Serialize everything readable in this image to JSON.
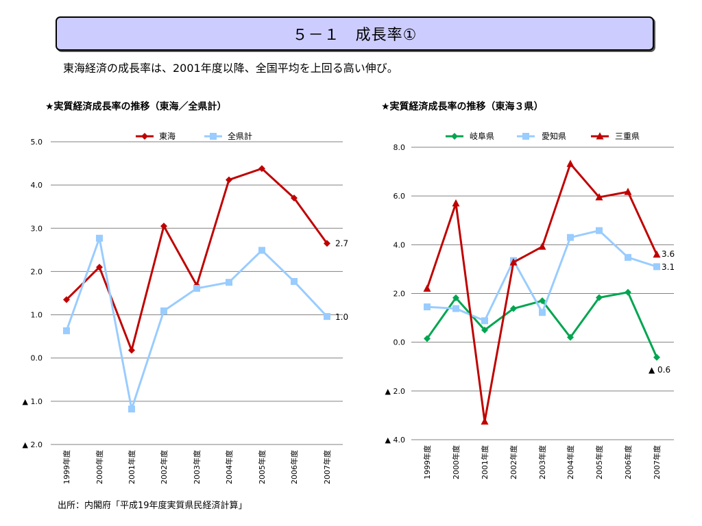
{
  "page": {
    "title": "５－１　成長率①",
    "lead": "東海経済の成長率は、2001年度以降、全国平均を上回る高い伸び。",
    "source": "出所：内閣府「平成19年度実質県民経済計算」"
  },
  "chart_data": [
    {
      "type": "line",
      "title": "★実質経済成長率の推移（東海／全県計）",
      "categories": [
        "1999年度",
        "2000年度",
        "2001年度",
        "2002年度",
        "2003年度",
        "2004年度",
        "2005年度",
        "2006年度",
        "2007年度"
      ],
      "ylim": [
        -2,
        5
      ],
      "yticks": [
        5,
        4,
        3,
        2,
        1,
        0,
        -1,
        -2
      ],
      "ytick_labels": [
        "5.0",
        "4.0",
        "3.0",
        "2.0",
        "1.0",
        "0.0",
        "▲ 1.0",
        "▲ 2.0"
      ],
      "grid": true,
      "legend": "top",
      "series": [
        {
          "name": "東海",
          "color": "#c00000",
          "marker": "diamond",
          "values": [
            1.35,
            2.1,
            0.18,
            3.05,
            1.68,
            4.12,
            4.38,
            3.7,
            2.65
          ],
          "end_label": "2.7"
        },
        {
          "name": "全県計",
          "color": "#99ccff",
          "marker": "square",
          "values": [
            0.63,
            2.77,
            -1.18,
            1.09,
            1.61,
            1.75,
            2.49,
            1.77,
            0.96
          ],
          "end_label": "1.0"
        }
      ]
    },
    {
      "type": "line",
      "title": "★実質経済成長率の推移（東海３県）",
      "categories": [
        "1999年度",
        "2000年度",
        "2001年度",
        "2002年度",
        "2003年度",
        "2004年度",
        "2005年度",
        "2006年度",
        "2007年度"
      ],
      "ylim": [
        -4,
        8
      ],
      "yticks": [
        8,
        6,
        4,
        2,
        0,
        -2,
        -4
      ],
      "ytick_labels": [
        "8.0",
        "6.0",
        "4.0",
        "2.0",
        "0.0",
        "▲ 2.0",
        "▲ 4.0"
      ],
      "grid": true,
      "legend": "top",
      "series": [
        {
          "name": "岐阜県",
          "color": "#00a550",
          "marker": "diamond",
          "values": [
            0.15,
            1.82,
            0.5,
            1.38,
            1.7,
            0.2,
            1.83,
            2.05,
            -0.62
          ],
          "end_label": "▲ 0.6"
        },
        {
          "name": "愛知県",
          "color": "#99ccff",
          "marker": "square",
          "values": [
            1.45,
            1.38,
            0.88,
            3.35,
            1.22,
            4.3,
            4.58,
            3.48,
            3.1
          ],
          "end_label": "3.1"
        },
        {
          "name": "三重県",
          "color": "#c00000",
          "marker": "triangle",
          "values": [
            2.2,
            5.7,
            -3.25,
            3.28,
            3.92,
            7.32,
            5.95,
            6.17,
            3.6
          ],
          "end_label": "3.6"
        }
      ]
    }
  ]
}
